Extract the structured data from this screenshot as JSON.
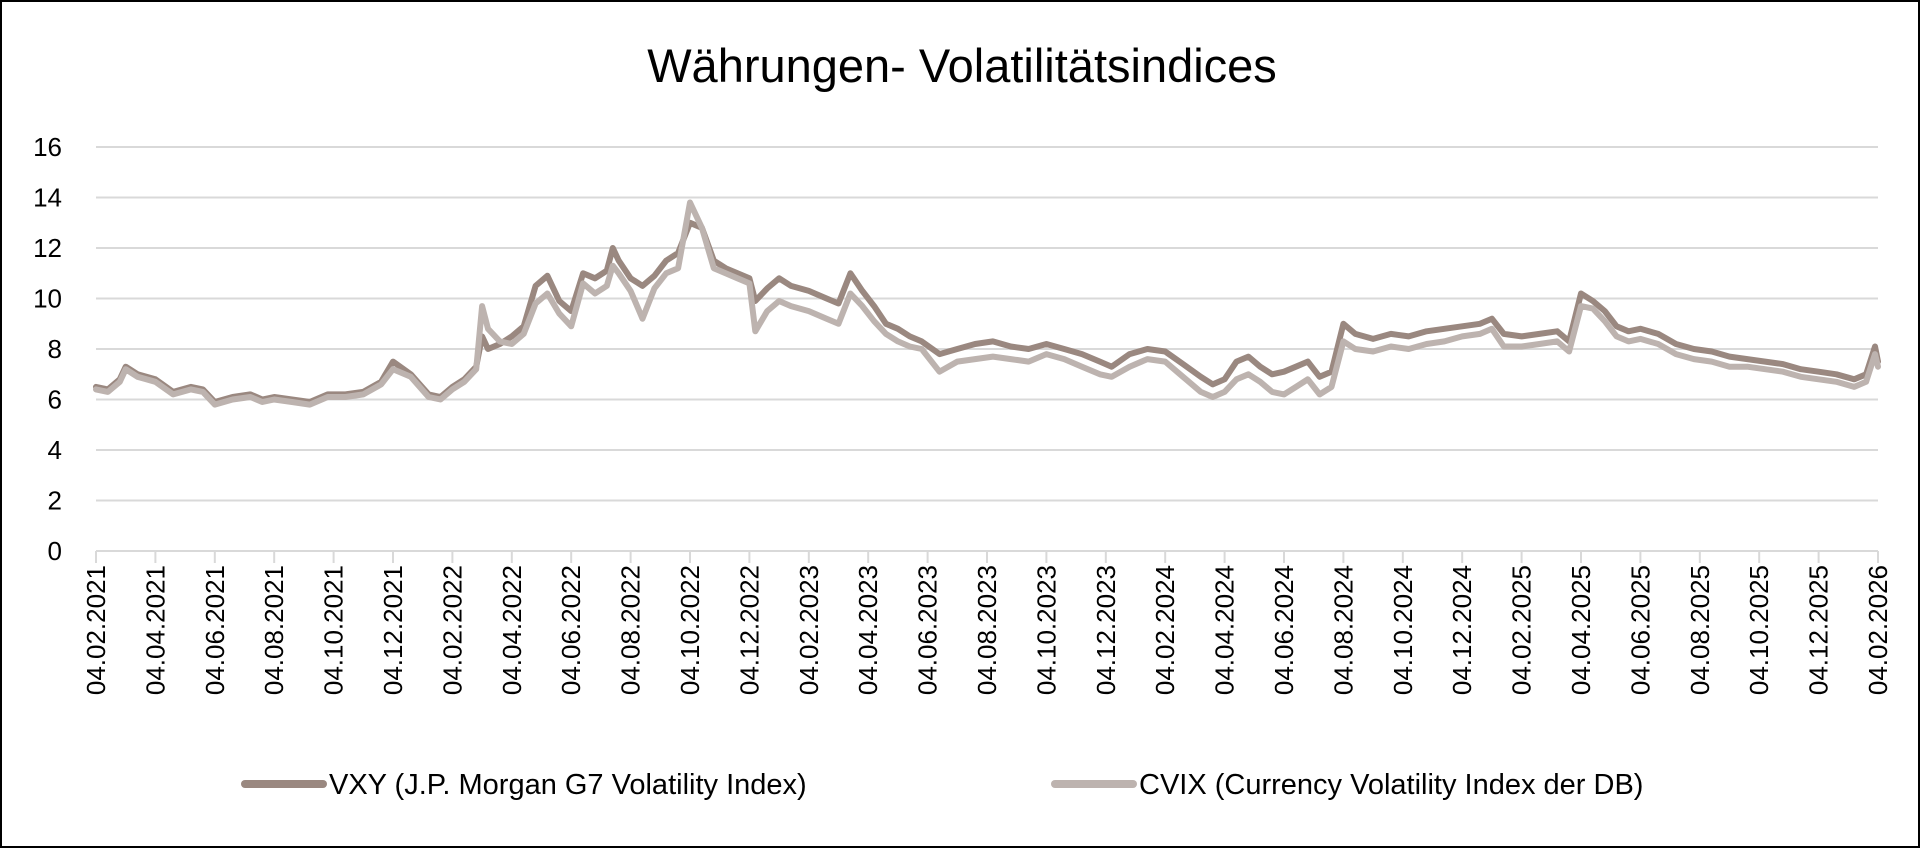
{
  "chart_data": {
    "type": "line",
    "title": "Währungen- Volatilitätsindices",
    "xlabel": "",
    "ylabel": "",
    "ylim": [
      0,
      16
    ],
    "yticks": [
      0,
      2,
      4,
      6,
      8,
      10,
      12,
      14,
      16
    ],
    "grid": "horizontal",
    "legend_position": "bottom",
    "categories": [
      "04.02.2021",
      "04.04.2021",
      "04.06.2021",
      "04.08.2021",
      "04.10.2021",
      "04.12.2021",
      "04.02.2022",
      "04.04.2022",
      "04.06.2022",
      "04.08.2022",
      "04.10.2022",
      "04.12.2022",
      "04.02.2023",
      "04.04.2023",
      "04.06.2023",
      "04.08.2023",
      "04.10.2023",
      "04.12.2023",
      "04.02.2024",
      "04.04.2024",
      "04.06.2024",
      "04.08.2024",
      "04.10.2024",
      "04.12.2024",
      "04.02.2025",
      "04.04.2025",
      "04.06.2025",
      "04.08.2025",
      "04.10.2025",
      "04.12.2025",
      "04.02.2026"
    ],
    "series": [
      {
        "name": "VXY (J.P. Morgan G7 Volatility Index)",
        "color": "#9a8880",
        "points": [
          [
            0,
            6.5
          ],
          [
            0.2,
            6.4
          ],
          [
            0.4,
            6.8
          ],
          [
            0.5,
            7.3
          ],
          [
            0.7,
            7.0
          ],
          [
            1.0,
            6.8
          ],
          [
            1.3,
            6.3
          ],
          [
            1.6,
            6.5
          ],
          [
            1.8,
            6.4
          ],
          [
            2.0,
            5.9
          ],
          [
            2.3,
            6.1
          ],
          [
            2.6,
            6.2
          ],
          [
            2.8,
            6.0
          ],
          [
            3.0,
            6.1
          ],
          [
            3.3,
            6.0
          ],
          [
            3.6,
            5.9
          ],
          [
            3.9,
            6.2
          ],
          [
            4.2,
            6.2
          ],
          [
            4.5,
            6.3
          ],
          [
            4.8,
            6.7
          ],
          [
            5.0,
            7.5
          ],
          [
            5.3,
            7.0
          ],
          [
            5.6,
            6.2
          ],
          [
            5.8,
            6.1
          ],
          [
            6.0,
            6.5
          ],
          [
            6.2,
            6.8
          ],
          [
            6.4,
            7.3
          ],
          [
            6.5,
            8.5
          ],
          [
            6.6,
            8.0
          ],
          [
            6.8,
            8.2
          ],
          [
            7.0,
            8.5
          ],
          [
            7.2,
            8.9
          ],
          [
            7.4,
            10.5
          ],
          [
            7.6,
            10.9
          ],
          [
            7.8,
            9.9
          ],
          [
            8.0,
            9.5
          ],
          [
            8.2,
            11.0
          ],
          [
            8.4,
            10.8
          ],
          [
            8.6,
            11.1
          ],
          [
            8.7,
            12.0
          ],
          [
            8.8,
            11.5
          ],
          [
            9.0,
            10.8
          ],
          [
            9.2,
            10.5
          ],
          [
            9.4,
            10.9
          ],
          [
            9.6,
            11.5
          ],
          [
            9.8,
            11.8
          ],
          [
            10.0,
            13.0
          ],
          [
            10.2,
            12.8
          ],
          [
            10.4,
            11.5
          ],
          [
            10.6,
            11.2
          ],
          [
            10.8,
            11.0
          ],
          [
            11.0,
            10.8
          ],
          [
            11.1,
            9.9
          ],
          [
            11.3,
            10.4
          ],
          [
            11.5,
            10.8
          ],
          [
            11.7,
            10.5
          ],
          [
            12.0,
            10.3
          ],
          [
            12.3,
            10.0
          ],
          [
            12.5,
            9.8
          ],
          [
            12.7,
            11.0
          ],
          [
            12.9,
            10.3
          ],
          [
            13.1,
            9.7
          ],
          [
            13.3,
            9.0
          ],
          [
            13.5,
            8.8
          ],
          [
            13.7,
            8.5
          ],
          [
            13.9,
            8.3
          ],
          [
            14.2,
            7.8
          ],
          [
            14.5,
            8.0
          ],
          [
            14.8,
            8.2
          ],
          [
            15.1,
            8.3
          ],
          [
            15.4,
            8.1
          ],
          [
            15.7,
            8.0
          ],
          [
            16.0,
            8.2
          ],
          [
            16.3,
            8.0
          ],
          [
            16.6,
            7.8
          ],
          [
            16.9,
            7.5
          ],
          [
            17.1,
            7.3
          ],
          [
            17.4,
            7.8
          ],
          [
            17.7,
            8.0
          ],
          [
            18.0,
            7.9
          ],
          [
            18.3,
            7.4
          ],
          [
            18.6,
            6.9
          ],
          [
            18.8,
            6.6
          ],
          [
            19.0,
            6.8
          ],
          [
            19.2,
            7.5
          ],
          [
            19.4,
            7.7
          ],
          [
            19.6,
            7.3
          ],
          [
            19.8,
            7.0
          ],
          [
            20.0,
            7.1
          ],
          [
            20.2,
            7.3
          ],
          [
            20.4,
            7.5
          ],
          [
            20.6,
            6.9
          ],
          [
            20.8,
            7.1
          ],
          [
            21.0,
            9.0
          ],
          [
            21.2,
            8.6
          ],
          [
            21.5,
            8.4
          ],
          [
            21.8,
            8.6
          ],
          [
            22.1,
            8.5
          ],
          [
            22.4,
            8.7
          ],
          [
            22.7,
            8.8
          ],
          [
            23.0,
            8.9
          ],
          [
            23.3,
            9.0
          ],
          [
            23.5,
            9.2
          ],
          [
            23.7,
            8.6
          ],
          [
            24.0,
            8.5
          ],
          [
            24.3,
            8.6
          ],
          [
            24.6,
            8.7
          ],
          [
            24.8,
            8.3
          ],
          [
            25.0,
            10.2
          ],
          [
            25.2,
            9.9
          ],
          [
            25.4,
            9.5
          ],
          [
            25.6,
            8.9
          ],
          [
            25.8,
            8.7
          ],
          [
            26.0,
            8.8
          ],
          [
            26.3,
            8.6
          ],
          [
            26.6,
            8.2
          ],
          [
            26.9,
            8.0
          ],
          [
            27.2,
            7.9
          ],
          [
            27.5,
            7.7
          ],
          [
            27.8,
            7.6
          ],
          [
            28.1,
            7.5
          ],
          [
            28.4,
            7.4
          ],
          [
            28.7,
            7.2
          ],
          [
            29.0,
            7.1
          ],
          [
            29.3,
            7.0
          ],
          [
            29.6,
            6.8
          ],
          [
            29.8,
            7.0
          ],
          [
            29.95,
            8.1
          ],
          [
            30.0,
            7.5
          ]
        ]
      },
      {
        "name": "CVIX (Currency Volatility Index der DB)",
        "color": "#bdb3af",
        "points": [
          [
            0,
            6.4
          ],
          [
            0.2,
            6.3
          ],
          [
            0.4,
            6.7
          ],
          [
            0.5,
            7.2
          ],
          [
            0.7,
            6.9
          ],
          [
            1.0,
            6.7
          ],
          [
            1.3,
            6.2
          ],
          [
            1.6,
            6.4
          ],
          [
            1.8,
            6.3
          ],
          [
            2.0,
            5.8
          ],
          [
            2.3,
            6.0
          ],
          [
            2.6,
            6.1
          ],
          [
            2.8,
            5.9
          ],
          [
            3.0,
            6.0
          ],
          [
            3.3,
            5.9
          ],
          [
            3.6,
            5.8
          ],
          [
            3.9,
            6.1
          ],
          [
            4.2,
            6.1
          ],
          [
            4.5,
            6.2
          ],
          [
            4.8,
            6.6
          ],
          [
            5.0,
            7.2
          ],
          [
            5.3,
            6.9
          ],
          [
            5.6,
            6.1
          ],
          [
            5.8,
            6.0
          ],
          [
            6.0,
            6.4
          ],
          [
            6.2,
            6.7
          ],
          [
            6.4,
            7.2
          ],
          [
            6.5,
            9.7
          ],
          [
            6.6,
            8.8
          ],
          [
            6.8,
            8.3
          ],
          [
            7.0,
            8.2
          ],
          [
            7.2,
            8.6
          ],
          [
            7.4,
            9.8
          ],
          [
            7.6,
            10.2
          ],
          [
            7.8,
            9.4
          ],
          [
            8.0,
            8.9
          ],
          [
            8.2,
            10.6
          ],
          [
            8.4,
            10.2
          ],
          [
            8.6,
            10.5
          ],
          [
            8.7,
            11.3
          ],
          [
            8.8,
            11.0
          ],
          [
            9.0,
            10.3
          ],
          [
            9.2,
            9.2
          ],
          [
            9.4,
            10.4
          ],
          [
            9.6,
            11.0
          ],
          [
            9.8,
            11.2
          ],
          [
            10.0,
            13.8
          ],
          [
            10.2,
            12.8
          ],
          [
            10.4,
            11.2
          ],
          [
            10.6,
            11.0
          ],
          [
            10.8,
            10.8
          ],
          [
            11.0,
            10.6
          ],
          [
            11.1,
            8.7
          ],
          [
            11.3,
            9.5
          ],
          [
            11.5,
            9.9
          ],
          [
            11.7,
            9.7
          ],
          [
            12.0,
            9.5
          ],
          [
            12.3,
            9.2
          ],
          [
            12.5,
            9.0
          ],
          [
            12.7,
            10.2
          ],
          [
            12.9,
            9.7
          ],
          [
            13.1,
            9.1
          ],
          [
            13.3,
            8.6
          ],
          [
            13.5,
            8.3
          ],
          [
            13.7,
            8.1
          ],
          [
            13.9,
            8.0
          ],
          [
            14.2,
            7.1
          ],
          [
            14.5,
            7.5
          ],
          [
            14.8,
            7.6
          ],
          [
            15.1,
            7.7
          ],
          [
            15.4,
            7.6
          ],
          [
            15.7,
            7.5
          ],
          [
            16.0,
            7.8
          ],
          [
            16.3,
            7.6
          ],
          [
            16.6,
            7.3
          ],
          [
            16.9,
            7.0
          ],
          [
            17.1,
            6.9
          ],
          [
            17.4,
            7.3
          ],
          [
            17.7,
            7.6
          ],
          [
            18.0,
            7.5
          ],
          [
            18.3,
            6.9
          ],
          [
            18.6,
            6.3
          ],
          [
            18.8,
            6.1
          ],
          [
            19.0,
            6.3
          ],
          [
            19.2,
            6.8
          ],
          [
            19.4,
            7.0
          ],
          [
            19.6,
            6.7
          ],
          [
            19.8,
            6.3
          ],
          [
            20.0,
            6.2
          ],
          [
            20.2,
            6.5
          ],
          [
            20.4,
            6.8
          ],
          [
            20.6,
            6.2
          ],
          [
            20.8,
            6.5
          ],
          [
            21.0,
            8.3
          ],
          [
            21.2,
            8.0
          ],
          [
            21.5,
            7.9
          ],
          [
            21.8,
            8.1
          ],
          [
            22.1,
            8.0
          ],
          [
            22.4,
            8.2
          ],
          [
            22.7,
            8.3
          ],
          [
            23.0,
            8.5
          ],
          [
            23.3,
            8.6
          ],
          [
            23.5,
            8.8
          ],
          [
            23.7,
            8.1
          ],
          [
            24.0,
            8.1
          ],
          [
            24.3,
            8.2
          ],
          [
            24.6,
            8.3
          ],
          [
            24.8,
            7.9
          ],
          [
            25.0,
            9.7
          ],
          [
            25.2,
            9.6
          ],
          [
            25.4,
            9.1
          ],
          [
            25.6,
            8.5
          ],
          [
            25.8,
            8.3
          ],
          [
            26.0,
            8.4
          ],
          [
            26.3,
            8.2
          ],
          [
            26.6,
            7.8
          ],
          [
            26.9,
            7.6
          ],
          [
            27.2,
            7.5
          ],
          [
            27.5,
            7.3
          ],
          [
            27.8,
            7.3
          ],
          [
            28.1,
            7.2
          ],
          [
            28.4,
            7.1
          ],
          [
            28.7,
            6.9
          ],
          [
            29.0,
            6.8
          ],
          [
            29.3,
            6.7
          ],
          [
            29.6,
            6.5
          ],
          [
            29.8,
            6.7
          ],
          [
            29.95,
            7.8
          ],
          [
            30.0,
            7.3
          ]
        ]
      }
    ]
  }
}
